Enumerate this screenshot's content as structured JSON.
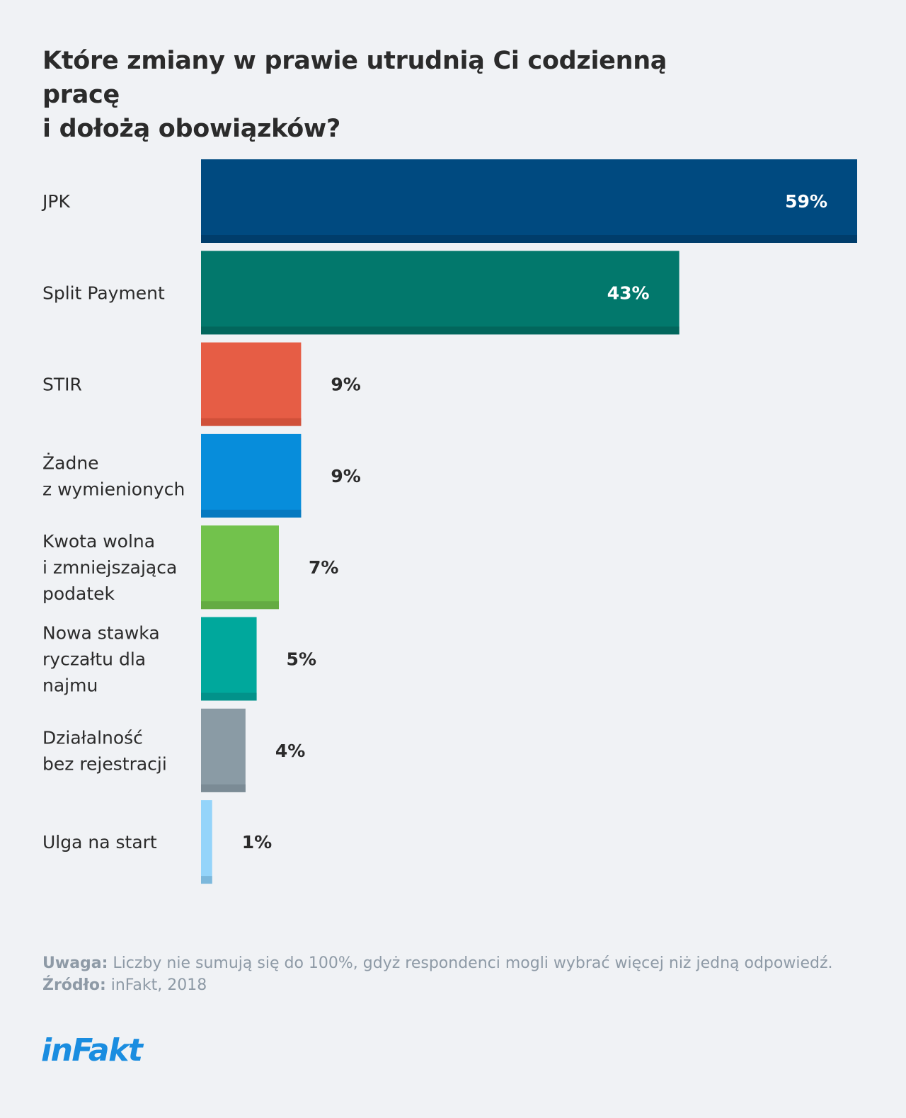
{
  "title": {
    "line1": "Które zmiany w prawie utrudnią Ci codzienną pracę",
    "line2": "i dołożą obowiązków?"
  },
  "chart_data": {
    "type": "bar",
    "orientation": "horizontal",
    "categories": [
      [
        "JPK"
      ],
      [
        "Split Payment"
      ],
      [
        "STIR"
      ],
      [
        "Żadne",
        "z wymienionych"
      ],
      [
        "Kwota wolna",
        "i zmniejszająca",
        "podatek"
      ],
      [
        "Nowa stawka",
        "ryczałtu dla",
        "najmu"
      ],
      [
        "Działalność",
        "bez rejestracji"
      ],
      [
        "Ulga na start"
      ]
    ],
    "values": [
      59,
      43,
      9,
      9,
      7,
      5,
      4,
      1
    ],
    "value_labels": [
      "59%",
      "43%",
      "9%",
      "9%",
      "7%",
      "5%",
      "4%",
      "1%"
    ],
    "colors": [
      "#004a80",
      "#02786c",
      "#e65d45",
      "#078ddb",
      "#72c24c",
      "#00a89c",
      "#8a9ba5",
      "#94d4fa"
    ],
    "shade_colors": [
      "#003d6b",
      "#02665c",
      "#d05039",
      "#0579c0",
      "#64ab43",
      "#02928a",
      "#7b8b95",
      "#7cb8dc"
    ],
    "xlim": [
      0,
      59
    ],
    "grid": false,
    "legend": "none"
  },
  "footnote": {
    "note_label": "Uwaga:",
    "note_text": " Liczby nie sumują się do 100%, gdyż respondenci mogli wybrać więcej niż jedną odpowiedź.",
    "source_label": "Źródło:",
    "source_text": " inFakt, 2018"
  },
  "logo": {
    "text": "inFakt"
  }
}
